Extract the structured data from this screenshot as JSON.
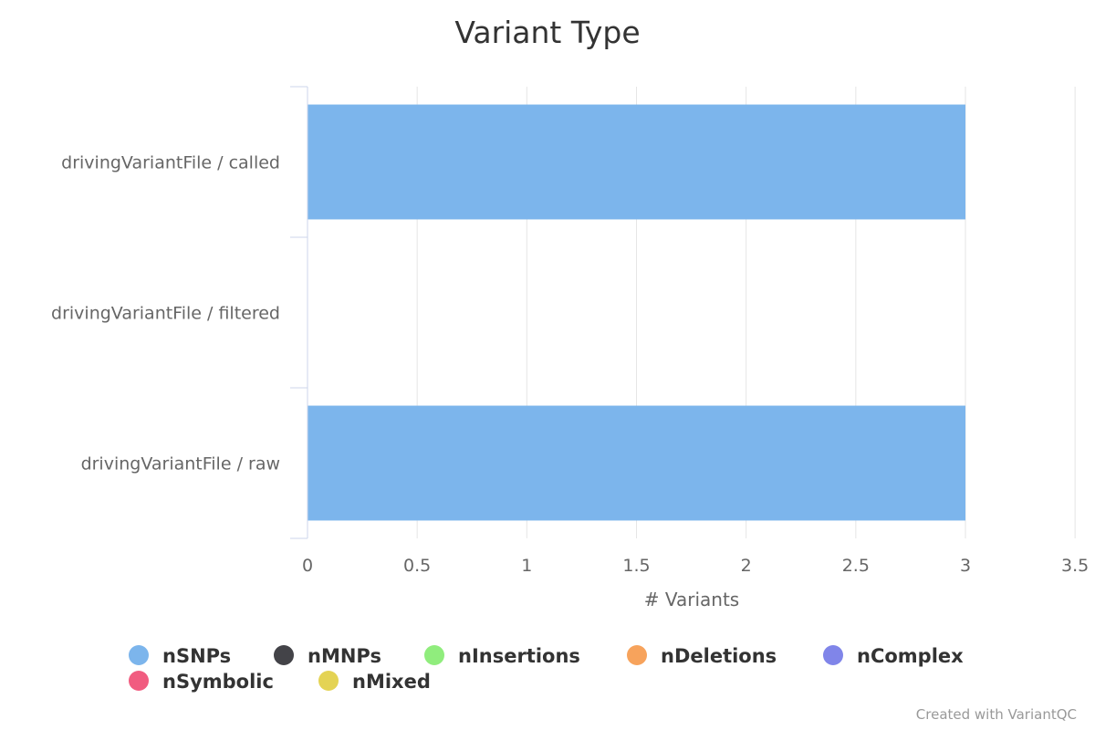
{
  "chart_data": {
    "type": "bar",
    "orientation": "horizontal",
    "stacked": true,
    "title": "Variant Type",
    "xlabel": "# Variants",
    "ylabel": "",
    "xlim": [
      0,
      3.5
    ],
    "xticks": [
      "0",
      "0.5",
      "1",
      "1.5",
      "2",
      "2.5",
      "3",
      "3.5"
    ],
    "grid": true,
    "legend_position": "bottom",
    "categories": [
      "drivingVariantFile / called",
      "drivingVariantFile / filtered",
      "drivingVariantFile / raw"
    ],
    "series": [
      {
        "name": "nSNPs",
        "color": "#7cb5ec",
        "values": [
          3,
          0,
          3
        ]
      },
      {
        "name": "nMNPs",
        "color": "#434348",
        "values": [
          0,
          0,
          0
        ]
      },
      {
        "name": "nInsertions",
        "color": "#90ed7d",
        "values": [
          0,
          0,
          0
        ]
      },
      {
        "name": "nDeletions",
        "color": "#f7a35c",
        "values": [
          0,
          0,
          0
        ]
      },
      {
        "name": "nComplex",
        "color": "#8085e9",
        "values": [
          0,
          0,
          0
        ]
      },
      {
        "name": "nSymbolic",
        "color": "#f15c80",
        "values": [
          0,
          0,
          0
        ]
      },
      {
        "name": "nMixed",
        "color": "#e4d354",
        "values": [
          0,
          0,
          0
        ]
      }
    ]
  },
  "credit": "Created with VariantQC"
}
